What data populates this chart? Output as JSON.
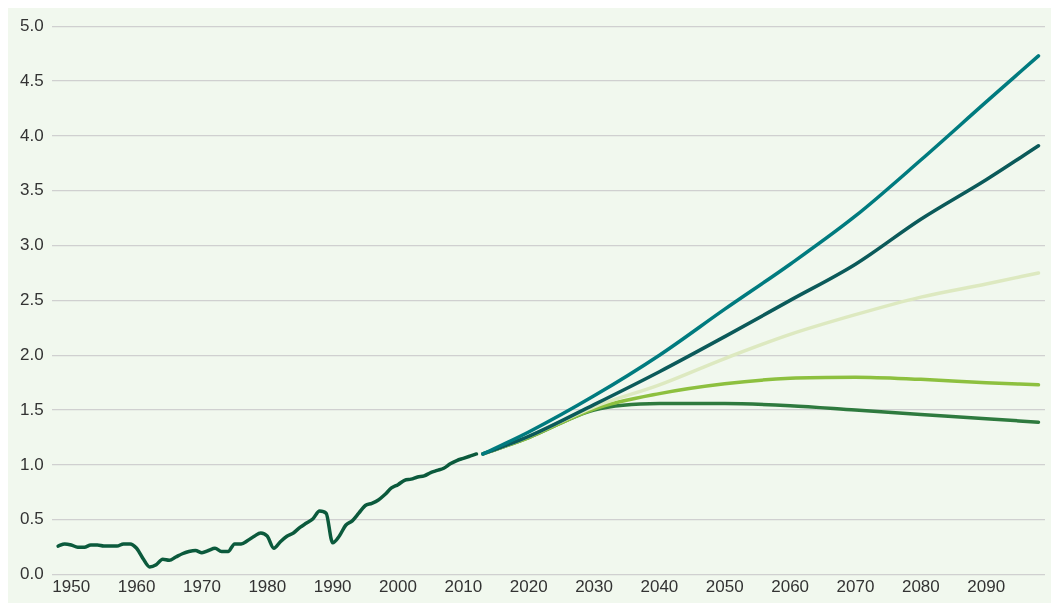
{
  "chart_data": {
    "type": "line",
    "xlim": [
      1947,
      2099
    ],
    "xticks": [
      1950,
      1960,
      1970,
      1980,
      1990,
      2000,
      2010,
      2020,
      2030,
      2040,
      2050,
      2060,
      2070,
      2080,
      2090
    ],
    "ylim": [
      0,
      5
    ],
    "yticks": [
      {
        "value": 0,
        "label": "0.0"
      },
      {
        "value": 0.5,
        "label": "0.5"
      },
      {
        "value": 1,
        "label": "1.0"
      },
      {
        "value": 1.5,
        "label": "1.5"
      },
      {
        "value": 2,
        "label": "2.0"
      },
      {
        "value": 2.5,
        "label": "2.5"
      },
      {
        "value": 3,
        "label": "3.0"
      },
      {
        "value": 3.5,
        "label": "3.5"
      },
      {
        "value": 4,
        "label": "4.0"
      },
      {
        "value": 4.5,
        "label": "4.5"
      },
      {
        "value": 5,
        "label": "5.0"
      }
    ],
    "grid": "y",
    "legend": false,
    "marker": "none",
    "line_style": "solid",
    "series": [
      {
        "color": "#0b5a3c",
        "x": [
          1948,
          1949,
          1950,
          1951,
          1952,
          1953,
          1954,
          1955,
          1956,
          1957,
          1958,
          1959,
          1960,
          1961,
          1962,
          1963,
          1964,
          1965,
          1966,
          1967,
          1968,
          1969,
          1970,
          1971,
          1972,
          1973,
          1974,
          1975,
          1976,
          1977,
          1978,
          1979,
          1980,
          1981,
          1982,
          1983,
          1984,
          1985,
          1986,
          1987,
          1988,
          1989,
          1990,
          1991,
          1992,
          1993,
          1994,
          1995,
          1996,
          1997,
          1998,
          1999,
          2000,
          2001,
          2002,
          2003,
          2004,
          2005,
          2006,
          2007,
          2008,
          2009,
          2010,
          2011,
          2012
        ],
        "values": [
          0.26,
          0.28,
          0.27,
          0.25,
          0.25,
          0.27,
          0.27,
          0.26,
          0.26,
          0.26,
          0.28,
          0.28,
          0.24,
          0.145,
          0.07,
          0.09,
          0.14,
          0.13,
          0.16,
          0.19,
          0.21,
          0.22,
          0.2,
          0.22,
          0.24,
          0.21,
          0.21,
          0.28,
          0.28,
          0.31,
          0.35,
          0.38,
          0.35,
          0.24,
          0.3,
          0.35,
          0.38,
          0.43,
          0.47,
          0.51,
          0.58,
          0.56,
          0.29,
          0.35,
          0.45,
          0.49,
          0.56,
          0.63,
          0.65,
          0.68,
          0.73,
          0.79,
          0.82,
          0.86,
          0.87,
          0.89,
          0.9,
          0.93,
          0.95,
          0.97,
          1.01,
          1.04,
          1.06,
          1.08,
          1.1
        ]
      },
      {
        "color": "#007b7f",
        "x": [
          2013,
          2020,
          2030,
          2040,
          2050,
          2060,
          2070,
          2080,
          2090,
          2098
        ],
        "values": [
          1.1,
          1.3,
          1.63,
          2.0,
          2.42,
          2.83,
          3.27,
          3.78,
          4.31,
          4.73
        ]
      },
      {
        "color": "#0b5a5a",
        "x": [
          2013,
          2020,
          2030,
          2040,
          2050,
          2060,
          2070,
          2080,
          2090,
          2098
        ],
        "values": [
          1.1,
          1.26,
          1.55,
          1.85,
          2.17,
          2.5,
          2.83,
          3.24,
          3.6,
          3.91
        ]
      },
      {
        "color": "#dde9c0",
        "x": [
          2013,
          2020,
          2030,
          2040,
          2050,
          2060,
          2070,
          2080,
          2090,
          2098
        ],
        "values": [
          1.1,
          1.26,
          1.53,
          1.73,
          1.97,
          2.19,
          2.37,
          2.53,
          2.65,
          2.75
        ]
      },
      {
        "color": "#8dc03f",
        "x": [
          2013,
          2020,
          2030,
          2040,
          2050,
          2060,
          2070,
          2080,
          2090,
          2098
        ],
        "values": [
          1.1,
          1.25,
          1.51,
          1.65,
          1.74,
          1.79,
          1.8,
          1.78,
          1.75,
          1.73
        ]
      },
      {
        "color": "#2e7a3e",
        "x": [
          2013,
          2020,
          2030,
          2040,
          2050,
          2060,
          2070,
          2080,
          2090,
          2098
        ],
        "values": [
          1.1,
          1.25,
          1.5,
          1.56,
          1.56,
          1.54,
          1.5,
          1.46,
          1.42,
          1.39
        ]
      }
    ]
  }
}
